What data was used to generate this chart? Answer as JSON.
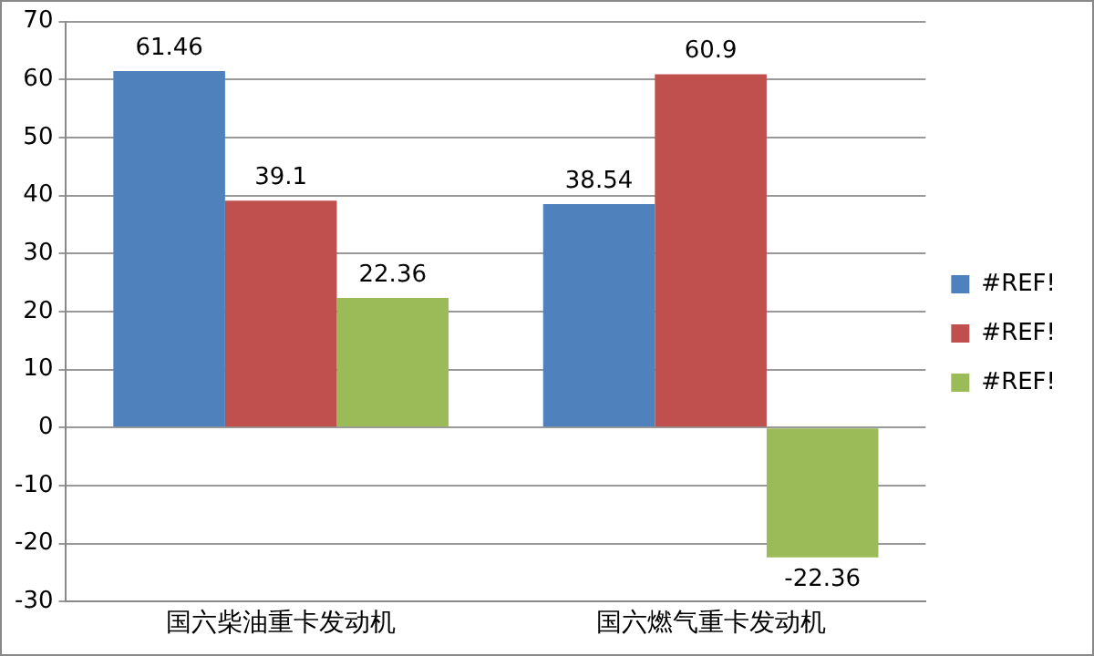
{
  "chart_data": {
    "type": "bar",
    "categories": [
      "国六柴油重卡发动机",
      "国六燃气重卡发动机"
    ],
    "series": [
      {
        "name": "#REF!",
        "color": "#4f81bd",
        "values": [
          61.46,
          38.54
        ]
      },
      {
        "name": "#REF!",
        "color": "#c0504d",
        "values": [
          39.1,
          60.9
        ]
      },
      {
        "name": "#REF!",
        "color": "#9bbb59",
        "values": [
          22.36,
          -22.36
        ]
      }
    ],
    "ylim": [
      -30,
      70
    ],
    "yticks": [
      -30,
      -20,
      -10,
      0,
      10,
      20,
      30,
      40,
      50,
      60,
      70
    ],
    "grid": "y",
    "legend": "right",
    "data_labels": true
  }
}
